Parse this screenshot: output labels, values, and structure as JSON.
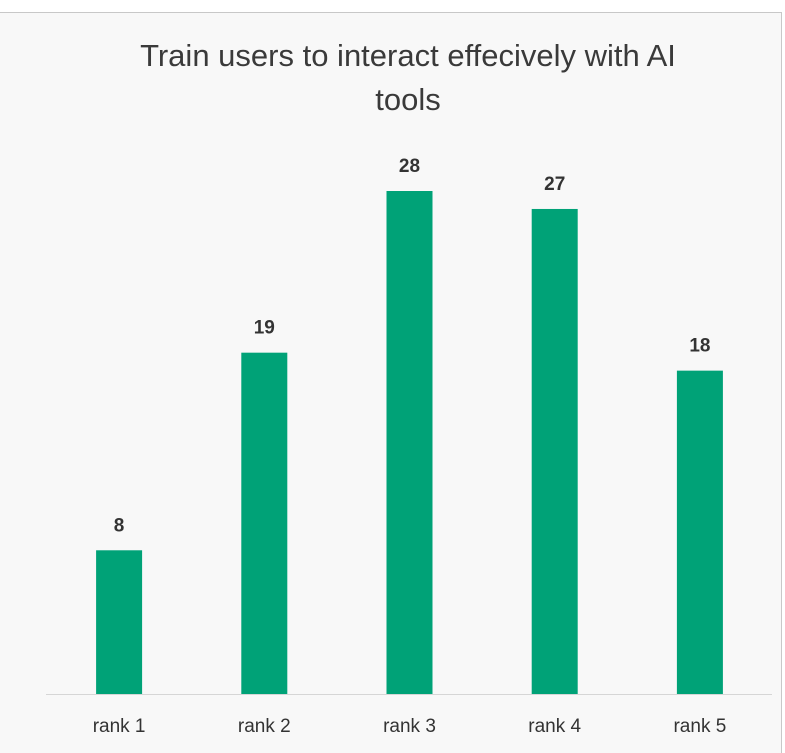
{
  "chart_data": {
    "type": "bar",
    "title": "Train users to interact effecively with AI tools",
    "categories": [
      "rank 1",
      "rank 2",
      "rank 3",
      "rank 4",
      "rank 5"
    ],
    "values": [
      8,
      19,
      28,
      27,
      18
    ],
    "color": "#00a277"
  }
}
